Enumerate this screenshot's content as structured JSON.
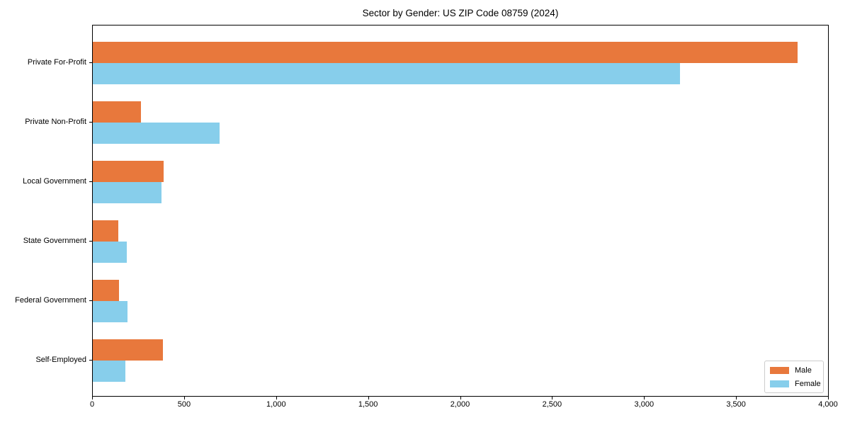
{
  "chart_data": {
    "type": "bar",
    "orientation": "horizontal",
    "title": "Sector by Gender: US ZIP Code 08759 (2024)",
    "categories": [
      "Private For-Profit",
      "Private Non-Profit",
      "Local Government",
      "State Government",
      "Federal Government",
      "Self-Employed"
    ],
    "series": [
      {
        "name": "Male",
        "color": "#e8783c",
        "values": [
          3830,
          260,
          385,
          140,
          142,
          380
        ]
      },
      {
        "name": "Female",
        "color": "#87ceeb",
        "values": [
          3190,
          690,
          375,
          185,
          190,
          175
        ]
      }
    ],
    "xlabel": "",
    "ylabel": "",
    "xlim": [
      0,
      4000
    ],
    "xticks": [
      0,
      500,
      1000,
      1500,
      2000,
      2500,
      3000,
      3500,
      4000
    ],
    "grid": false,
    "legend_position": "lower right",
    "background_color": "#ffffff",
    "axis_color": "#000000",
    "legend_border_color": "#cccccc"
  }
}
